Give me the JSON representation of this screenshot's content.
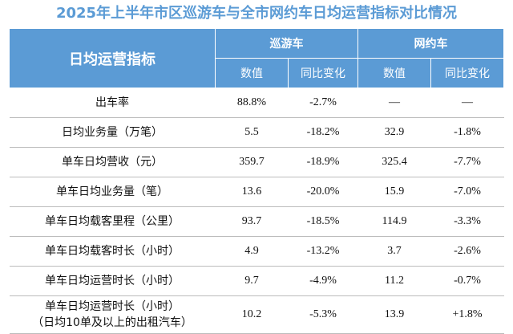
{
  "title": "2025年上半年市区巡游车与全市网约车日均运营指标对比情况",
  "header": {
    "metric": "日均运营指标",
    "groups": [
      "巡游车",
      "网约车"
    ],
    "sub": [
      "数值",
      "同比变化",
      "数值",
      "同比变化"
    ]
  },
  "rows": [
    {
      "label": "出车率",
      "label2": "",
      "cells": [
        "88.8%",
        "-2.7%",
        "—",
        "—"
      ]
    },
    {
      "label": "日均业务量（万笔）",
      "label2": "",
      "cells": [
        "5.5",
        "-18.2%",
        "32.9",
        "-1.8%"
      ]
    },
    {
      "label": "单车日均营收（元）",
      "label2": "",
      "cells": [
        "359.7",
        "-18.9%",
        "325.4",
        "-7.7%"
      ]
    },
    {
      "label": "单车日均业务量（笔）",
      "label2": "",
      "cells": [
        "13.6",
        "-20.0%",
        "15.9",
        "-7.0%"
      ]
    },
    {
      "label": "单车日均载客里程（公里）",
      "label2": "",
      "cells": [
        "93.7",
        "-18.5%",
        "114.9",
        "-3.3%"
      ]
    },
    {
      "label": "单车日均载客时长（小时）",
      "label2": "",
      "cells": [
        "4.9",
        "-13.2%",
        "3.7",
        "-2.6%"
      ]
    },
    {
      "label": "单车日均运营时长（小时）",
      "label2": "",
      "cells": [
        "9.7",
        "-4.9%",
        "11.2",
        "-0.7%"
      ]
    },
    {
      "label": "单车日均运营时长（小时）",
      "label2": "（日均10单及以上的出租汽车）",
      "cells": [
        "10.2",
        "-5.3%",
        "13.9",
        "+1.8%"
      ]
    }
  ],
  "colors": {
    "header_bg": "#5B9BD5",
    "title_color": "#5B9BD5",
    "row_rule": "#bcbcbc"
  }
}
